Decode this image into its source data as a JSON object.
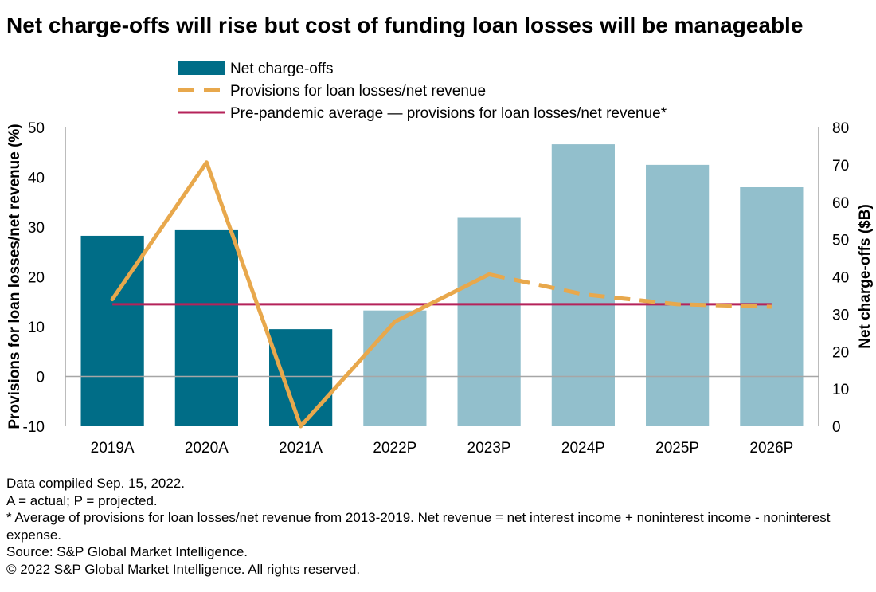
{
  "title": "Net charge-offs will rise but cost of funding loan losses will be manageable",
  "legend": {
    "bars_label": "Net charge-offs",
    "dashed_label": "Provisions for loan losses/net revenue",
    "avg_label": "Pre-pandemic average — provisions for loan losses/net revenue*"
  },
  "notes": [
    "Data compiled Sep. 15, 2022.",
    "A = actual; P = projected.",
    "* Average of provisions for loan losses/net revenue from 2013-2019. Net revenue = net interest income + noninterest income - noninterest expense.",
    "Source: S&P Global Market Intelligence.",
    "© 2022 S&P Global Market Intelligence. All rights reserved."
  ],
  "colors": {
    "actual_bar": "#006d87",
    "projected_bar": "#92bfcc",
    "provisions_line": "#e8a84c",
    "average_line": "#b5235a",
    "axis": "#a6a6a6"
  },
  "chart_data": {
    "type": "bar",
    "title": "Net charge-offs will rise but cost of funding loan losses will be manageable",
    "categories": [
      "2019A",
      "2020A",
      "2021A",
      "2022P",
      "2023P",
      "2024P",
      "2025P",
      "2026P"
    ],
    "y_left": {
      "label": "Provisions for loan losses/net revenue (%)",
      "range": [
        -10,
        50
      ],
      "ticks": [
        "-10",
        "0",
        "10",
        "20",
        "30",
        "40",
        "50"
      ]
    },
    "y_right": {
      "label": "Net charge-offs ($B)",
      "range": [
        0,
        80
      ],
      "ticks": [
        "0",
        "10",
        "20",
        "30",
        "40",
        "50",
        "60",
        "70",
        "80"
      ]
    },
    "series": [
      {
        "name": "Net charge-offs",
        "kind": "bar",
        "axis": "right",
        "values": [
          51,
          52.5,
          26,
          31,
          56,
          75.5,
          70,
          64
        ],
        "status": [
          "actual",
          "actual",
          "actual",
          "projected",
          "projected",
          "projected",
          "projected",
          "projected"
        ]
      },
      {
        "name": "Provisions for loan losses/net revenue",
        "kind": "line",
        "axis": "left",
        "values": [
          15.5,
          43,
          -10,
          11,
          20.5,
          16.5,
          14.5,
          14
        ],
        "dashed_from_index": 4
      },
      {
        "name": "Pre-pandemic average — provisions for loan losses/net revenue*",
        "kind": "hline",
        "axis": "left",
        "value": 14.5
      }
    ],
    "grid": false,
    "legend_position": "top"
  }
}
